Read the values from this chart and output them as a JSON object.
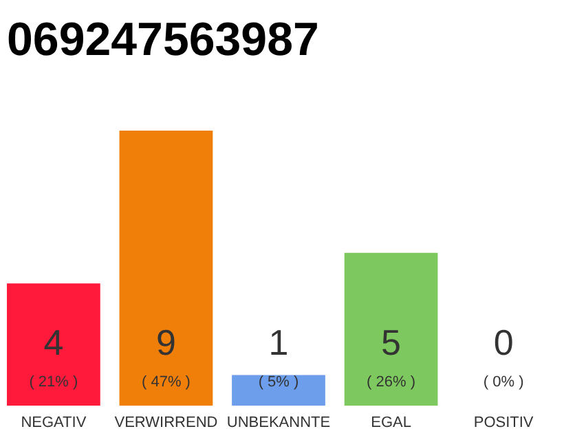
{
  "chart_data": {
    "type": "bar",
    "title": "069247563987",
    "categories": [
      "NEGATIV",
      "VERWIRREND",
      "UNBEKANNTE",
      "EGAL",
      "POSITIV"
    ],
    "values": [
      4,
      9,
      1,
      5,
      0
    ],
    "colors": [
      "#ff1a3c",
      "#f07f0a",
      "#6d9eeb",
      "#7ec95f",
      "#a0a0a0"
    ],
    "annotations": [
      "( 21% )",
      "( 47% )",
      "( 5% )",
      "( 26% )",
      "( 0% )"
    ],
    "data_labels": true,
    "grid": false
  }
}
